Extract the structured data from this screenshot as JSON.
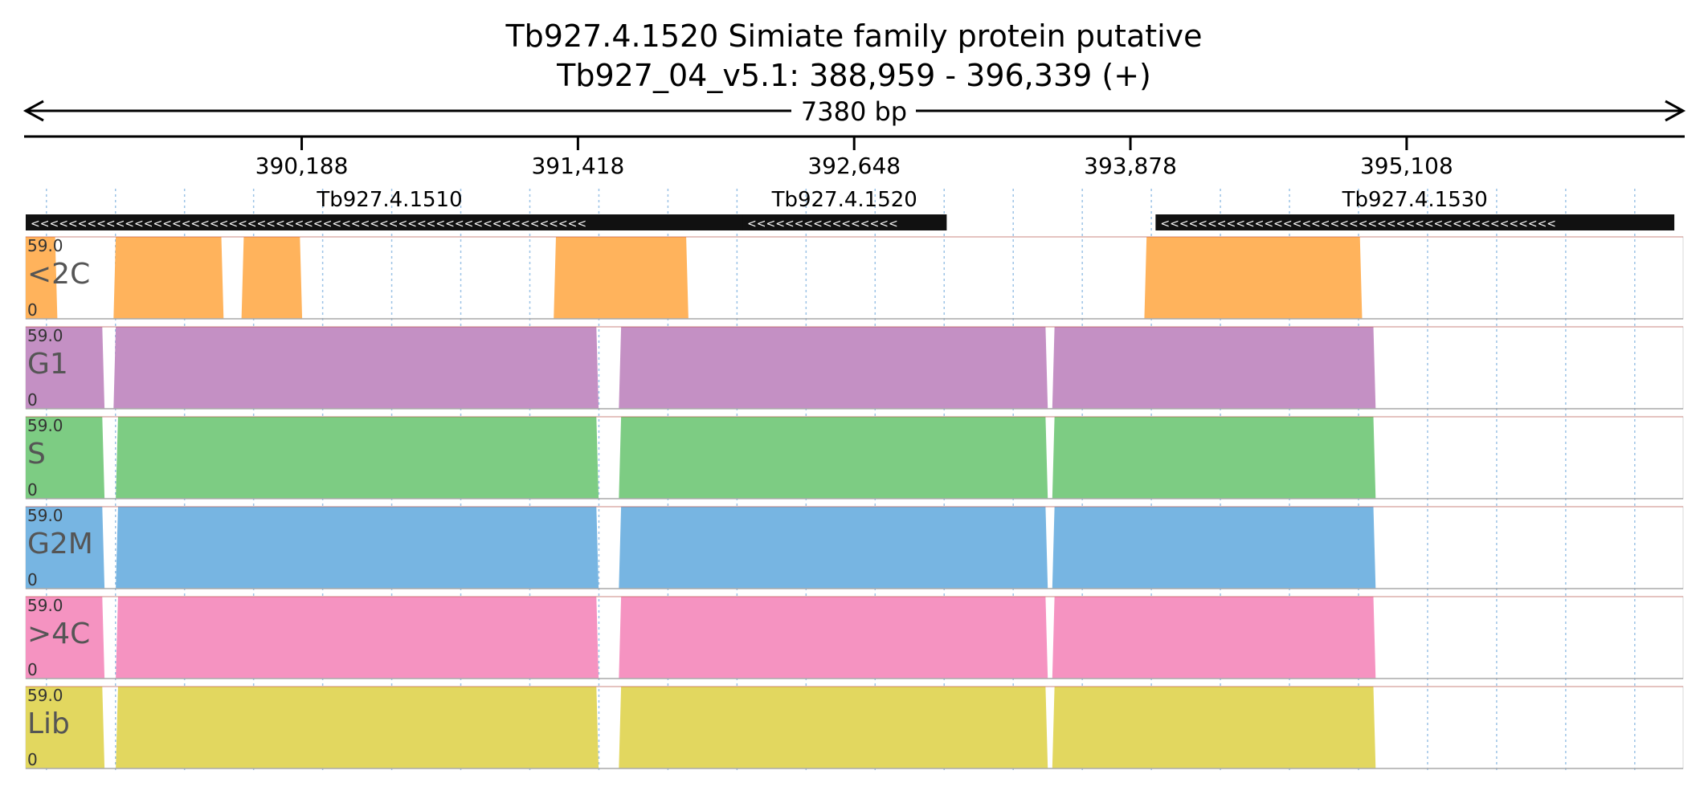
{
  "header": {
    "title": "Tb927.4.1520  Simiate family protein  putative",
    "subtitle": "Tb927_04_v5.1: 388,959 - 396,339 (+)",
    "span_label": "7380 bp"
  },
  "chart_data": {
    "type": "area",
    "title": "Tb927.4.1520  Simiate family protein  putative",
    "x_range": [
      388959,
      396339
    ],
    "x_ticks": [
      390188,
      391418,
      392648,
      393878,
      395108
    ],
    "x_tick_labels": [
      "390,188",
      "391,418",
      "392,648",
      "393,878",
      "395,108"
    ],
    "y_range": [
      0,
      59.0
    ],
    "y_max_label": "59.0",
    "y_min_label": "0",
    "genes": [
      {
        "name": "Tb927.4.1510",
        "start": 388959,
        "end": 392200,
        "strand": "-"
      },
      {
        "name": "Tb927.4.1520",
        "start": 392150,
        "end": 393060,
        "strand": "-"
      },
      {
        "name": "Tb927.4.1530",
        "start": 393990,
        "end": 396300,
        "strand": "-"
      }
    ],
    "series": [
      {
        "name": "<2C",
        "color": "#ffb35c",
        "points": [
          [
            388959,
            59
          ],
          [
            389090,
            59
          ],
          [
            389100,
            0
          ],
          [
            389350,
            0
          ],
          [
            389360,
            59
          ],
          [
            389830,
            59
          ],
          [
            389840,
            0
          ],
          [
            389920,
            0
          ],
          [
            389930,
            59
          ],
          [
            390180,
            59
          ],
          [
            390190,
            0
          ],
          [
            391310,
            0
          ],
          [
            391320,
            59
          ],
          [
            391900,
            59
          ],
          [
            391910,
            0
          ],
          [
            392700,
            0
          ],
          [
            392710,
            0
          ],
          [
            393200,
            0
          ],
          [
            393210,
            0
          ],
          [
            393940,
            0
          ],
          [
            393950,
            59
          ],
          [
            394900,
            59
          ],
          [
            394910,
            0
          ],
          [
            396339,
            0
          ]
        ]
      },
      {
        "name": "G1",
        "color": "#c490c4",
        "points": [
          [
            388959,
            59
          ],
          [
            389300,
            59
          ],
          [
            389310,
            0
          ],
          [
            389350,
            0
          ],
          [
            389360,
            59
          ],
          [
            391500,
            59
          ],
          [
            391510,
            0
          ],
          [
            391600,
            0
          ],
          [
            391610,
            59
          ],
          [
            393500,
            59
          ],
          [
            393510,
            0
          ],
          [
            393530,
            0
          ],
          [
            393540,
            59
          ],
          [
            394960,
            59
          ],
          [
            394970,
            0
          ],
          [
            396339,
            0
          ]
        ]
      },
      {
        "name": "S",
        "color": "#7dcc83",
        "points": [
          [
            388959,
            59
          ],
          [
            389300,
            59
          ],
          [
            389310,
            0
          ],
          [
            389360,
            0
          ],
          [
            389370,
            59
          ],
          [
            391500,
            59
          ],
          [
            391510,
            0
          ],
          [
            391600,
            0
          ],
          [
            391610,
            59
          ],
          [
            393500,
            59
          ],
          [
            393510,
            0
          ],
          [
            393530,
            0
          ],
          [
            393540,
            59
          ],
          [
            394960,
            59
          ],
          [
            394970,
            0
          ],
          [
            396339,
            0
          ]
        ]
      },
      {
        "name": "G2M",
        "color": "#77b5e2",
        "points": [
          [
            388959,
            59
          ],
          [
            389300,
            59
          ],
          [
            389310,
            0
          ],
          [
            389360,
            0
          ],
          [
            389370,
            59
          ],
          [
            391500,
            59
          ],
          [
            391510,
            0
          ],
          [
            391600,
            0
          ],
          [
            391610,
            59
          ],
          [
            393500,
            59
          ],
          [
            393510,
            0
          ],
          [
            393530,
            0
          ],
          [
            393540,
            59
          ],
          [
            394960,
            59
          ],
          [
            394970,
            0
          ],
          [
            396339,
            0
          ]
        ]
      },
      {
        "name": ">4C",
        "color": "#f593c1",
        "points": [
          [
            388959,
            59
          ],
          [
            389300,
            59
          ],
          [
            389310,
            0
          ],
          [
            389360,
            0
          ],
          [
            389370,
            59
          ],
          [
            391500,
            59
          ],
          [
            391510,
            0
          ],
          [
            391600,
            0
          ],
          [
            391610,
            59
          ],
          [
            393500,
            59
          ],
          [
            393510,
            0
          ],
          [
            393530,
            0
          ],
          [
            393540,
            59
          ],
          [
            394960,
            59
          ],
          [
            394970,
            0
          ],
          [
            396339,
            0
          ]
        ]
      },
      {
        "name": "Lib",
        "color": "#e2d75f",
        "points": [
          [
            388959,
            59
          ],
          [
            389300,
            59
          ],
          [
            389310,
            0
          ],
          [
            389360,
            0
          ],
          [
            389370,
            59
          ],
          [
            391500,
            59
          ],
          [
            391510,
            0
          ],
          [
            391600,
            0
          ],
          [
            391610,
            59
          ],
          [
            393500,
            59
          ],
          [
            393510,
            0
          ],
          [
            393530,
            0
          ],
          [
            393540,
            59
          ],
          [
            394960,
            59
          ],
          [
            394970,
            0
          ],
          [
            396339,
            0
          ]
        ]
      }
    ]
  }
}
